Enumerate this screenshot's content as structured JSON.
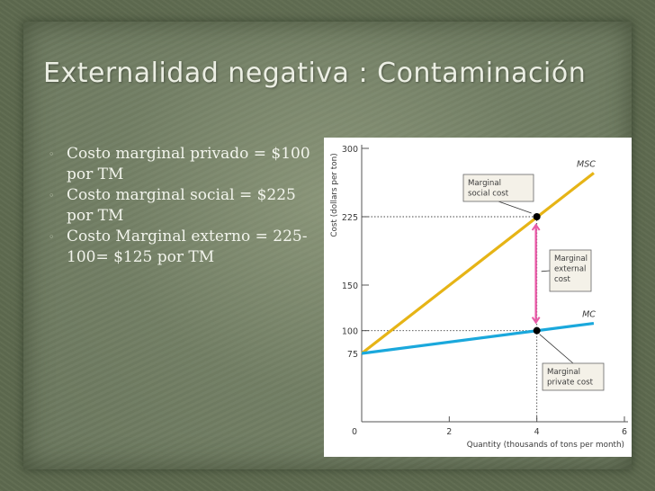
{
  "slide": {
    "title": "Externalidad negativa : Contaminación",
    "bullets": [
      {
        "mark": "◦",
        "text": "Costo marginal privado = $100 por TM"
      },
      {
        "mark": "◦",
        "text": "Costo marginal social = $225 por TM"
      },
      {
        "mark": "◦",
        "text": "Costo Marginal externo = 225-100= $125 por TM"
      }
    ]
  },
  "chart_data": {
    "type": "line",
    "xlabel": "Quantity (thousands of tons per month)",
    "ylabel": "Cost (dollars per ton)",
    "xlim": [
      0,
      6
    ],
    "ylim": [
      0,
      300
    ],
    "x_ticks": [
      "0",
      "2",
      "4",
      "6"
    ],
    "y_ticks": [
      "75",
      "100",
      "150",
      "225",
      "300"
    ],
    "grid": false,
    "series": [
      {
        "name": "MSC",
        "color": "#e6b416",
        "x": [
          0,
          5.3
        ],
        "y": [
          75,
          273
        ]
      },
      {
        "name": "MC",
        "color": "#1aa8dc",
        "x": [
          0,
          5.3
        ],
        "y": [
          75,
          108
        ]
      }
    ],
    "points": [
      {
        "x": 4,
        "y": 225
      },
      {
        "x": 4,
        "y": 100
      }
    ],
    "annotations": [
      {
        "label": "Marginal social cost",
        "lines": [
          "Marginal",
          "social cost"
        ]
      },
      {
        "label": "Marginal external cost",
        "lines": [
          "Marginal",
          "external",
          "cost"
        ]
      },
      {
        "label": "Marginal private cost",
        "lines": [
          "Marginal",
          "private cost"
        ]
      }
    ],
    "external_cost_arrow": {
      "x": 4,
      "from": 100,
      "to": 225,
      "color": "#e85aa6"
    }
  }
}
